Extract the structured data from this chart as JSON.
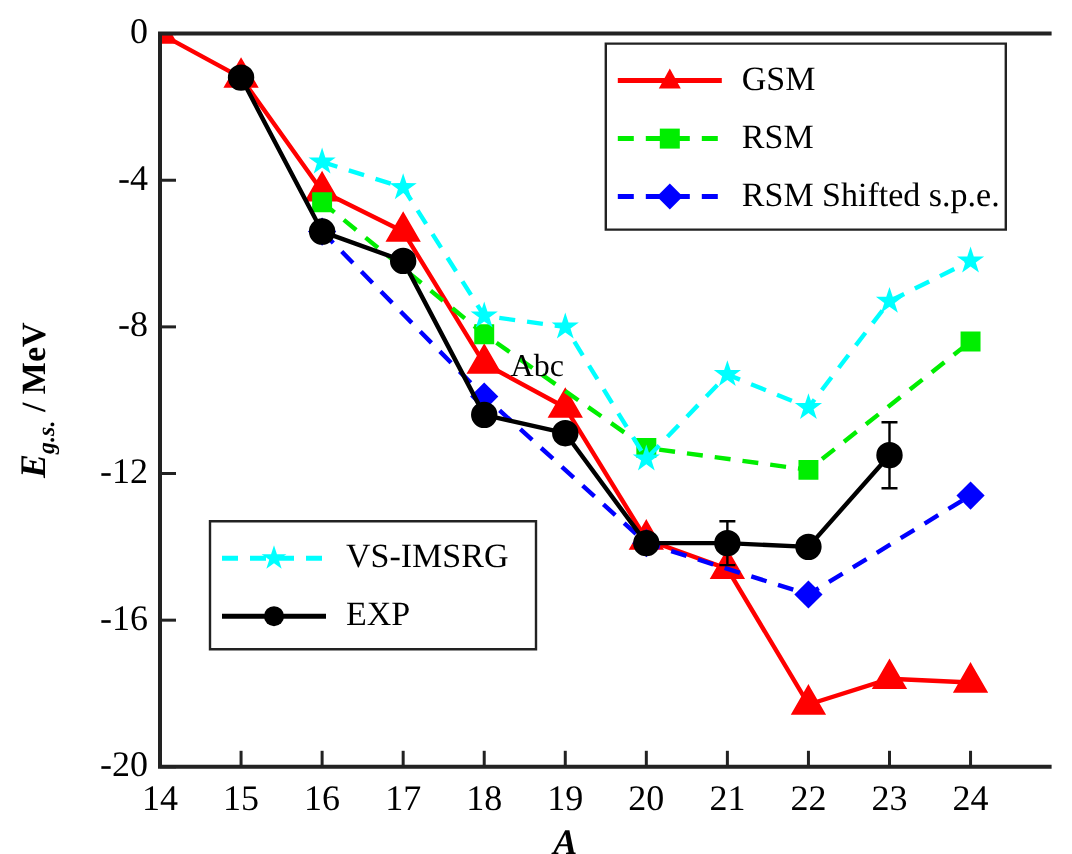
{
  "chart_data": {
    "type": "line",
    "xlabel": "A",
    "ylabel": "E$_{g.s.}$ / MeV",
    "x": [
      14,
      15,
      16,
      17,
      18,
      19,
      20,
      21,
      22,
      23,
      24
    ],
    "xlim": [
      14,
      25
    ],
    "xticks": [
      14,
      15,
      16,
      17,
      18,
      19,
      20,
      21,
      22,
      23,
      24
    ],
    "ylim": [
      -20,
      0
    ],
    "yticks": [
      -20,
      -16,
      -12,
      -8,
      -4,
      0
    ],
    "grid": false,
    "legend": "top right",
    "annotations": [
      {
        "text": "Abc",
        "x": 19,
        "y": -10.2
      }
    ],
    "series": [
      {
        "name": "GSM",
        "color": "#ff0000",
        "marker": "triangle",
        "line_style": "solid",
        "values": [
          0,
          -1.2,
          -4.3,
          -5.4,
          -9.0,
          -10.2,
          -13.8,
          -14.6,
          -18.3,
          -17.6,
          -17.7
        ]
      },
      {
        "name": "RSM",
        "color": "#00ee00",
        "marker": "square",
        "line_style": "dashed",
        "x": [
          16,
          18,
          20,
          22,
          24
        ],
        "values": [
          -4.6,
          -8.2,
          -11.3,
          -11.9,
          -8.4
        ]
      },
      {
        "name": "RSM Shifted s.p.e.",
        "color": "#0000ff",
        "marker": "diamond",
        "line_style": "dashed",
        "x": [
          16,
          18,
          20,
          22,
          24
        ],
        "values": [
          -5.4,
          -9.9,
          -13.9,
          -15.3,
          -12.6
        ]
      },
      {
        "name": "VS-IMSRG",
        "color": "#00ffff",
        "marker": "star",
        "line_style": "dashed",
        "x": [
          16,
          17,
          18,
          19,
          20,
          21,
          22,
          23,
          24
        ],
        "values": [
          -3.5,
          -4.2,
          -7.7,
          -8.0,
          -11.6,
          -9.3,
          -10.2,
          -7.3,
          -6.2
        ]
      },
      {
        "name": "EXP",
        "color": "#000000",
        "marker": "circle",
        "line_style": "solid",
        "x": [
          15,
          16,
          17,
          18,
          19,
          20,
          21,
          22,
          23
        ],
        "values": [
          -1.2,
          -5.4,
          -6.2,
          -10.4,
          -10.9,
          -13.9,
          -13.9,
          -14.0,
          -11.5
        ],
        "errors": [
          null,
          null,
          null,
          null,
          null,
          null,
          0.6,
          null,
          0.9
        ]
      }
    ]
  }
}
